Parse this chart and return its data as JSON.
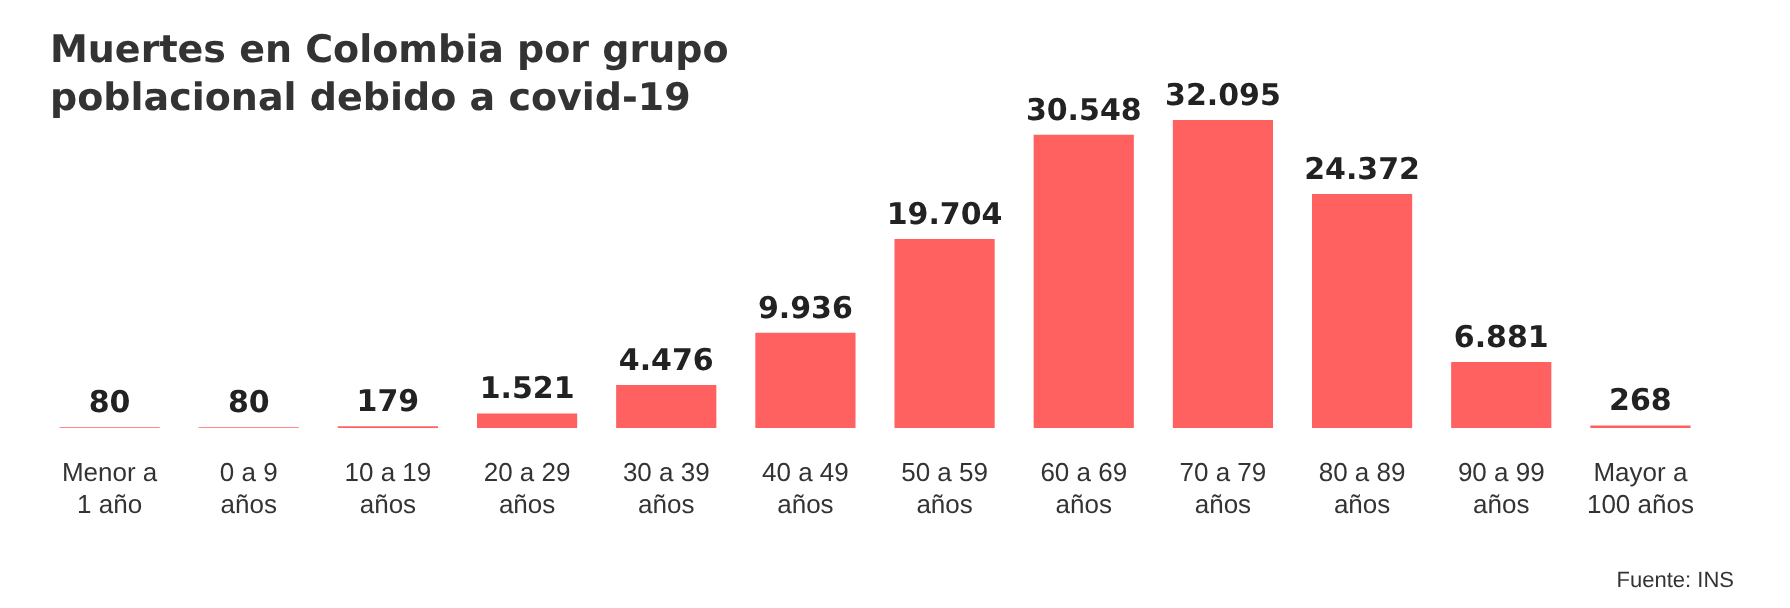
{
  "chart_data": {
    "type": "bar",
    "title": "Muertes en Colombia por grupo\npoblacional debido a covid-19",
    "categories": [
      "Menor a\n1 año",
      "0 a 9\naños",
      "10 a 19\naños",
      "20 a 29\naños",
      "30 a 39\naños",
      "40 a 49\naños",
      "50 a 59\naños",
      "60 a 69\naños",
      "70 a 79\naños",
      "80 a 89\naños",
      "90 a 99\naños",
      "Mayor a\n100 años"
    ],
    "values": [
      80,
      80,
      179,
      1521,
      4476,
      9936,
      19704,
      30548,
      32095,
      24372,
      6881,
      268
    ],
    "value_labels": [
      "80",
      "80",
      "179",
      "1.521",
      "4.476",
      "9.936",
      "19.704",
      "30.548",
      "32.095",
      "24.372",
      "6.881",
      "268"
    ],
    "color": "#ff6161",
    "annotations": [
      "Fuente: INS"
    ]
  }
}
